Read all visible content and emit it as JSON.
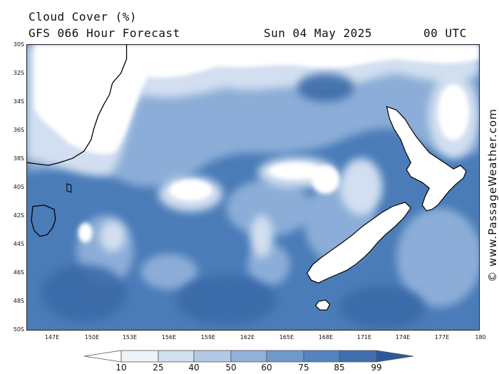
{
  "header": {
    "title": "Cloud Cover (%)",
    "subtitle": "GFS 066 Hour Forecast",
    "date": "Sun 04 May 2025",
    "time": "00 UTC"
  },
  "credit": "© www.PassageWeather.com",
  "map": {
    "lat_labels": [
      "30S",
      "32S",
      "34S",
      "36S",
      "38S",
      "40S",
      "42S",
      "44S",
      "46S",
      "48S",
      "50S"
    ],
    "lon_labels": [
      "147E",
      "150E",
      "153E",
      "156E",
      "159E",
      "162E",
      "165E",
      "168E",
      "171E",
      "174E",
      "177E",
      "180"
    ],
    "land_outline_color": "#000000",
    "ocean_base_color": "#4a7cb8"
  },
  "colorbar": {
    "labels": [
      "10",
      "25",
      "40",
      "50",
      "60",
      "75",
      "85",
      "99"
    ],
    "colors": [
      "#ffffff",
      "#eef3fa",
      "#d2dff0",
      "#b2c8e6",
      "#92b0d9",
      "#7098cb",
      "#5583c0",
      "#3f6fae",
      "#2b5a9c"
    ]
  }
}
